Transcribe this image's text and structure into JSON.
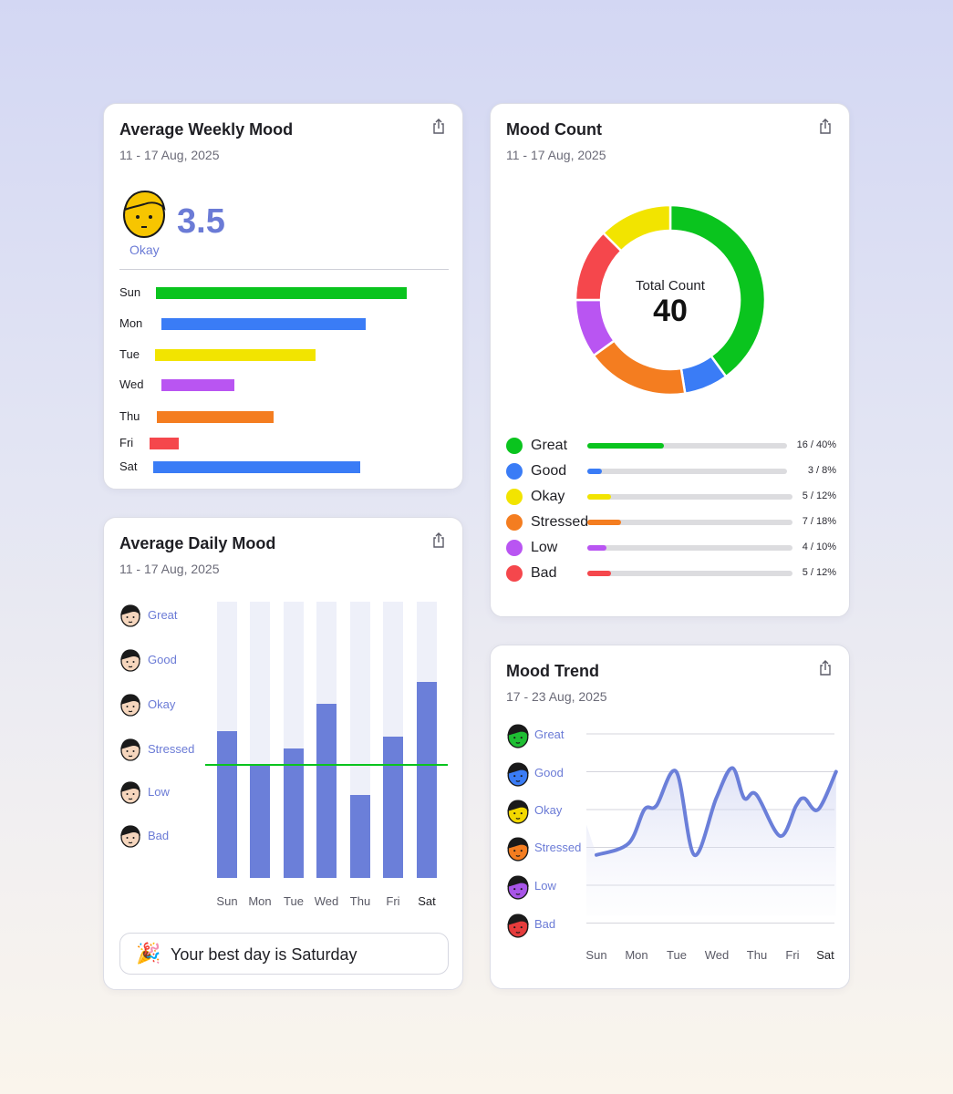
{
  "weekly": {
    "title": "Average Weekly Mood",
    "date_range": "11 - 17 Aug, 2025",
    "score": "3.5",
    "score_label": "Okay",
    "days": [
      {
        "label": "Sun",
        "color": "#0ac41e",
        "mood_value": 4.3
      },
      {
        "label": "Mon",
        "color": "#3a7cf6",
        "mood_value": 3.5
      },
      {
        "label": "Tue",
        "color": "#f2e400",
        "mood_value": 2.75
      },
      {
        "label": "Wed",
        "color": "#b955f2",
        "mood_value": 1.25
      },
      {
        "label": "Thu",
        "color": "#f47d20",
        "mood_value": 2.0
      },
      {
        "label": "Fri",
        "color": "#f5474c",
        "mood_value": 0.5
      },
      {
        "label": "Sat",
        "color": "#3a7cf6",
        "mood_value": 3.55
      }
    ]
  },
  "count": {
    "title": "Mood Count",
    "date_range": "11 - 17 Aug, 2025",
    "center_label": "Total Count",
    "total": "40",
    "chart_data": {
      "type": "pie",
      "title": "Mood Count",
      "categories": [
        "Great",
        "Good",
        "Stressed",
        "Low",
        "Bad",
        "Okay"
      ],
      "values": [
        16,
        3,
        7,
        4,
        5,
        5
      ]
    },
    "items": [
      {
        "name": "Great",
        "color": "#0ac41e",
        "count": 16,
        "value": "16 / 40%"
      },
      {
        "name": "Good",
        "color": "#3a7cf6",
        "count": 3,
        "value": "3 / 8%"
      },
      {
        "name": "Okay",
        "color": "#f2e400",
        "count": 5,
        "value": "5 / 12%"
      },
      {
        "name": "Stressed",
        "color": "#f47d20",
        "count": 7,
        "value": "7 / 18%"
      },
      {
        "name": "Low",
        "color": "#b955f2",
        "count": 4,
        "value": "4 / 10%"
      },
      {
        "name": "Bad",
        "color": "#f5474c",
        "count": 5,
        "value": "5 / 12%"
      }
    ]
  },
  "daily": {
    "title": "Average Daily Mood",
    "date_range": "11 - 17 Aug, 2025",
    "moods": [
      "Great",
      "Good",
      "Okay",
      "Stressed",
      "Low",
      "Bad"
    ],
    "best_day": "Your best day is Saturday",
    "chart_data": {
      "type": "bar",
      "categories": [
        "Sun",
        "Mon",
        "Tue",
        "Wed",
        "Thu",
        "Fri",
        "Sat"
      ],
      "values": [
        0.53,
        0.41,
        0.47,
        0.63,
        0.3,
        0.51,
        0.71
      ],
      "average": 0.41,
      "highlight": "Sat"
    }
  },
  "trend": {
    "title": "Mood Trend",
    "date_range": "17 - 23 Aug, 2025",
    "moods": [
      {
        "name": "Great",
        "color": "#1fbf33"
      },
      {
        "name": "Good",
        "color": "#3a7cf6"
      },
      {
        "name": "Okay",
        "color": "#f2d800"
      },
      {
        "name": "Stressed",
        "color": "#f47d20"
      },
      {
        "name": "Low",
        "color": "#a855e8"
      },
      {
        "name": "Bad",
        "color": "#e53c3c"
      }
    ],
    "chart_data": {
      "type": "line",
      "x": [
        "Sun",
        "Mon",
        "Tue",
        "Wed",
        "Thu",
        "Fri",
        "Sat"
      ],
      "highlight": "Sat",
      "series": [
        {
          "points": [
            [
              0,
              1.8
            ],
            [
              0.8,
              2.1
            ],
            [
              1.2,
              3.0
            ],
            [
              1.5,
              3.1
            ],
            [
              2.0,
              4.0
            ],
            [
              2.45,
              1.8
            ],
            [
              3.0,
              3.3
            ],
            [
              3.4,
              4.1
            ],
            [
              3.7,
              3.3
            ],
            [
              4.0,
              3.4
            ],
            [
              4.6,
              2.3
            ],
            [
              5.0,
              3.1
            ],
            [
              5.2,
              3.3
            ],
            [
              5.55,
              3.0
            ],
            [
              6.0,
              4.0
            ]
          ]
        }
      ],
      "ylim": [
        0,
        5
      ]
    }
  }
}
